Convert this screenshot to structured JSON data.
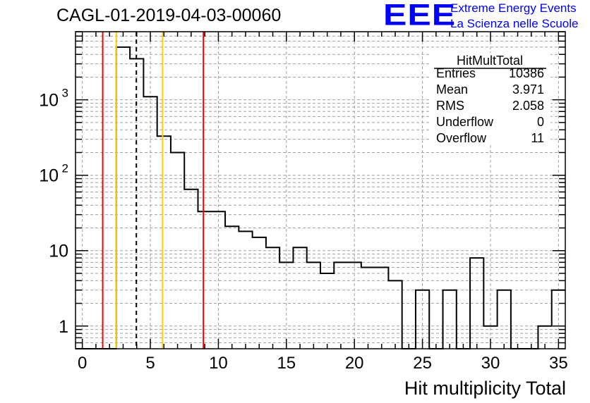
{
  "title": "CAGL-01-2019-04-03-00060",
  "logo": {
    "text": "EEE",
    "line1": "Extreme Energy Events",
    "line2": "La Scienza nelle Scuole",
    "color": "#0000ff"
  },
  "stats": {
    "name": "HitMultTotal",
    "rows": [
      {
        "label": "Entries",
        "value": "10386"
      },
      {
        "label": "Mean",
        "value": "3.971"
      },
      {
        "label": "RMS",
        "value": "2.058"
      },
      {
        "label": "Underflow",
        "value": "0"
      },
      {
        "label": "Overflow",
        "value": "11"
      }
    ]
  },
  "chart_data": {
    "type": "histogram",
    "xlabel": "Hit multiplicity Total",
    "ylabel": "",
    "xlim": [
      -0.5,
      35.5
    ],
    "ylim": [
      0.5,
      8000
    ],
    "yscale": "log",
    "grid": true,
    "bin_width": 1,
    "bin_low_edges": [
      -0.5,
      0.5,
      1.5,
      2.5,
      3.5,
      4.5,
      5.5,
      6.5,
      7.5,
      8.5,
      9.5,
      10.5,
      11.5,
      12.5,
      13.5,
      14.5,
      15.5,
      16.5,
      17.5,
      18.5,
      19.5,
      20.5,
      21.5,
      22.5,
      23.5,
      24.5,
      25.5,
      26.5,
      27.5,
      28.5,
      29.5,
      30.5,
      31.5,
      32.5,
      33.5,
      34.5
    ],
    "values": [
      0,
      0,
      0,
      5000,
      3500,
      1100,
      330,
      200,
      65,
      33,
      33,
      21,
      18,
      15,
      11,
      7,
      11,
      7,
      5,
      7,
      7,
      6,
      6,
      4,
      0,
      3,
      0,
      3,
      0,
      8,
      1,
      3,
      0,
      0,
      1,
      3
    ],
    "x_ticks": [
      "0",
      "5",
      "10",
      "15",
      "20",
      "25",
      "30",
      "35"
    ],
    "y_ticks": [
      {
        "value": 1,
        "label": "1"
      },
      {
        "value": 10,
        "label": "10"
      },
      {
        "value": 100,
        "label": "10",
        "exp": "2"
      },
      {
        "value": 1000,
        "label": "10",
        "exp": "3"
      }
    ],
    "vlines": [
      {
        "x": 1.5,
        "color": "#ff0000",
        "style": "solid"
      },
      {
        "x": 2.5,
        "color": "#ffcc00",
        "style": "solid"
      },
      {
        "x": 3.971,
        "color": "#000000",
        "style": "dashed"
      },
      {
        "x": 5.9,
        "color": "#ffcc00",
        "style": "solid"
      },
      {
        "x": 8.9,
        "color": "#ff0000",
        "style": "solid"
      }
    ]
  }
}
